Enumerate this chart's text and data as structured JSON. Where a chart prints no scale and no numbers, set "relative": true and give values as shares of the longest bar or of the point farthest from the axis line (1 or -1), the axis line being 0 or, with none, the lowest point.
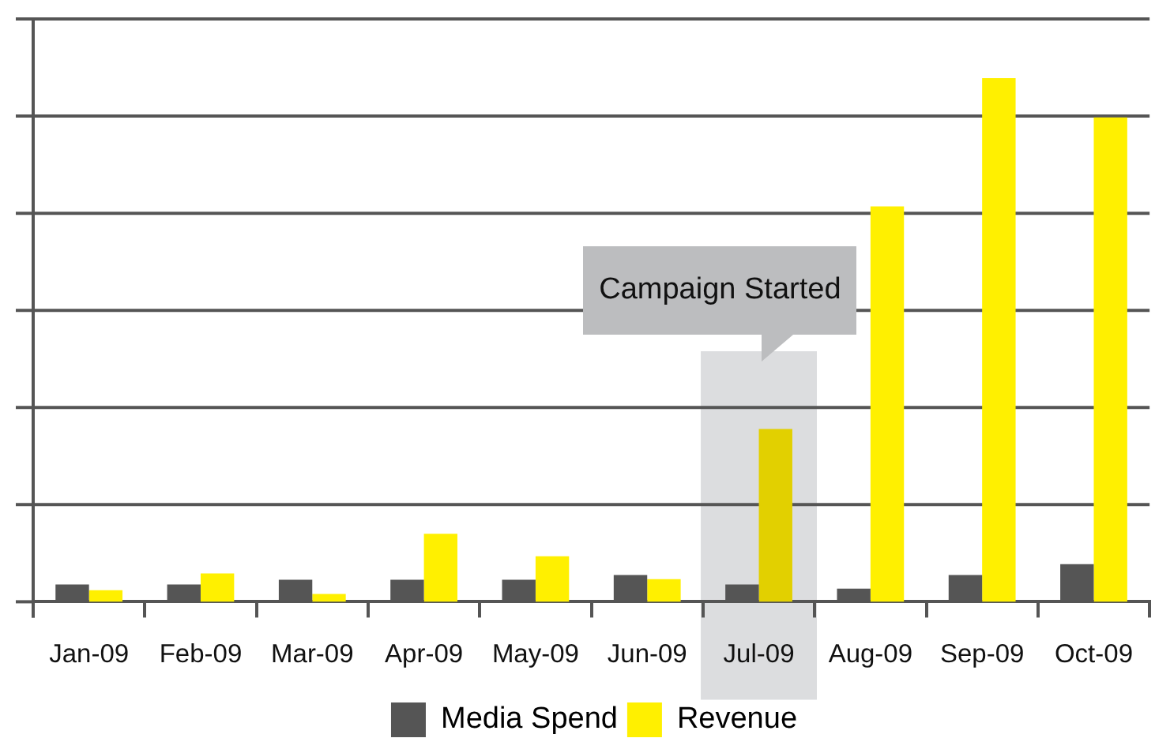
{
  "chart_data": {
    "type": "bar",
    "relative": true,
    "grid": true,
    "legend": "bottom",
    "categories": [
      "Jan-09",
      "Feb-09",
      "Mar-09",
      "Apr-09",
      "May-09",
      "Jun-09",
      "Jul-09",
      "Aug-09",
      "Sep-09",
      "Oct-09"
    ],
    "series": [
      {
        "name": "Media Spend",
        "color": "#555555",
        "values": [
          0.033,
          0.033,
          0.042,
          0.042,
          0.042,
          0.051,
          0.033,
          0.025,
          0.051,
          0.072
        ]
      },
      {
        "name": "Revenue",
        "color": "#fff000",
        "colors": [
          "#fff000",
          "#fff000",
          "#fff000",
          "#fff000",
          "#fff000",
          "#fff000",
          "#e2d000",
          "#fff000",
          "#fff000",
          "#fff000"
        ],
        "values": [
          0.022,
          0.054,
          0.015,
          0.13,
          0.087,
          0.043,
          0.33,
          0.755,
          1,
          0.925
        ]
      }
    ],
    "bands": [
      {
        "axis": "x",
        "from": "Jul-09",
        "to": "Jul-09",
        "color": "#dcdddf",
        "label": "Campaign Started"
      }
    ]
  }
}
